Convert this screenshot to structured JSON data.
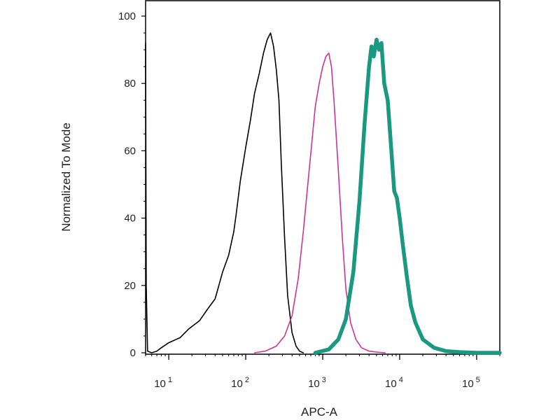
{
  "chart_data": {
    "type": "line",
    "title": "",
    "xlabel": "APC-A",
    "ylabel": "Normalized To Mode",
    "xscale": "log",
    "xlim": [
      5,
      200000
    ],
    "ylim": [
      0,
      100
    ],
    "grid": false,
    "legend": "none",
    "x_ticks": [
      {
        "value": 10,
        "base": "10",
        "exp": "1"
      },
      {
        "value": 100,
        "base": "10",
        "exp": "2"
      },
      {
        "value": 1000,
        "base": "10",
        "exp": "3"
      },
      {
        "value": 10000,
        "base": "10",
        "exp": "4"
      },
      {
        "value": 100000,
        "base": "10",
        "exp": "5"
      }
    ],
    "y_ticks": [
      {
        "value": 0,
        "label": "0"
      },
      {
        "value": 20,
        "label": "20"
      },
      {
        "value": 40,
        "label": "40"
      },
      {
        "value": 60,
        "label": "60"
      },
      {
        "value": 80,
        "label": "80"
      },
      {
        "value": 100,
        "label": "100"
      }
    ],
    "series": [
      {
        "color": "#000000",
        "weight": "thin",
        "x": [
          5,
          5.1,
          5.3,
          6,
          7,
          8,
          10,
          14,
          18,
          25,
          32,
          40,
          50,
          60,
          70,
          75,
          85,
          100,
          115,
          130,
          150,
          170,
          190,
          210,
          230,
          250,
          270,
          290,
          320,
          350,
          400,
          450,
          500,
          560
        ],
        "y": [
          92,
          20,
          0.5,
          0,
          0.5,
          1.5,
          3,
          4.5,
          7,
          9.5,
          13,
          16,
          24,
          29,
          36,
          41,
          51,
          61,
          69,
          77,
          83,
          89,
          93,
          95,
          91,
          84,
          75,
          56,
          34,
          17,
          6,
          2,
          0.5,
          0
        ]
      },
      {
        "color": "#cc3399",
        "weight": "thin",
        "x": [
          130,
          180,
          250,
          320,
          400,
          480,
          560,
          640,
          720,
          800,
          900,
          1000,
          1100,
          1200,
          1300,
          1400,
          1600,
          1800,
          2000,
          2300,
          2700,
          3200,
          4000,
          5000,
          6500
        ],
        "y": [
          0,
          0.5,
          2,
          5,
          11,
          22,
          36,
          50,
          62,
          73,
          80,
          85,
          88,
          89,
          85,
          75,
          54,
          34,
          19,
          9,
          4,
          1.5,
          0.5,
          0.2,
          0
        ]
      },
      {
        "color": "#1a9980",
        "weight": "thick",
        "x": [
          800,
          1200,
          1600,
          2000,
          2500,
          3000,
          3500,
          4000,
          4300,
          4600,
          5000,
          5400,
          5800,
          6300,
          7000,
          7800,
          8500,
          9200,
          10000,
          11000,
          12500,
          14000,
          16000,
          20000,
          28000,
          40000,
          60000,
          100000,
          200000
        ],
        "y": [
          0,
          1,
          4,
          10,
          24,
          45,
          68,
          85,
          91,
          88,
          93,
          90,
          92,
          80,
          75,
          60,
          48,
          46,
          40,
          32,
          22,
          14,
          9,
          4,
          1.5,
          0.5,
          0.2,
          0,
          0
        ]
      }
    ]
  }
}
